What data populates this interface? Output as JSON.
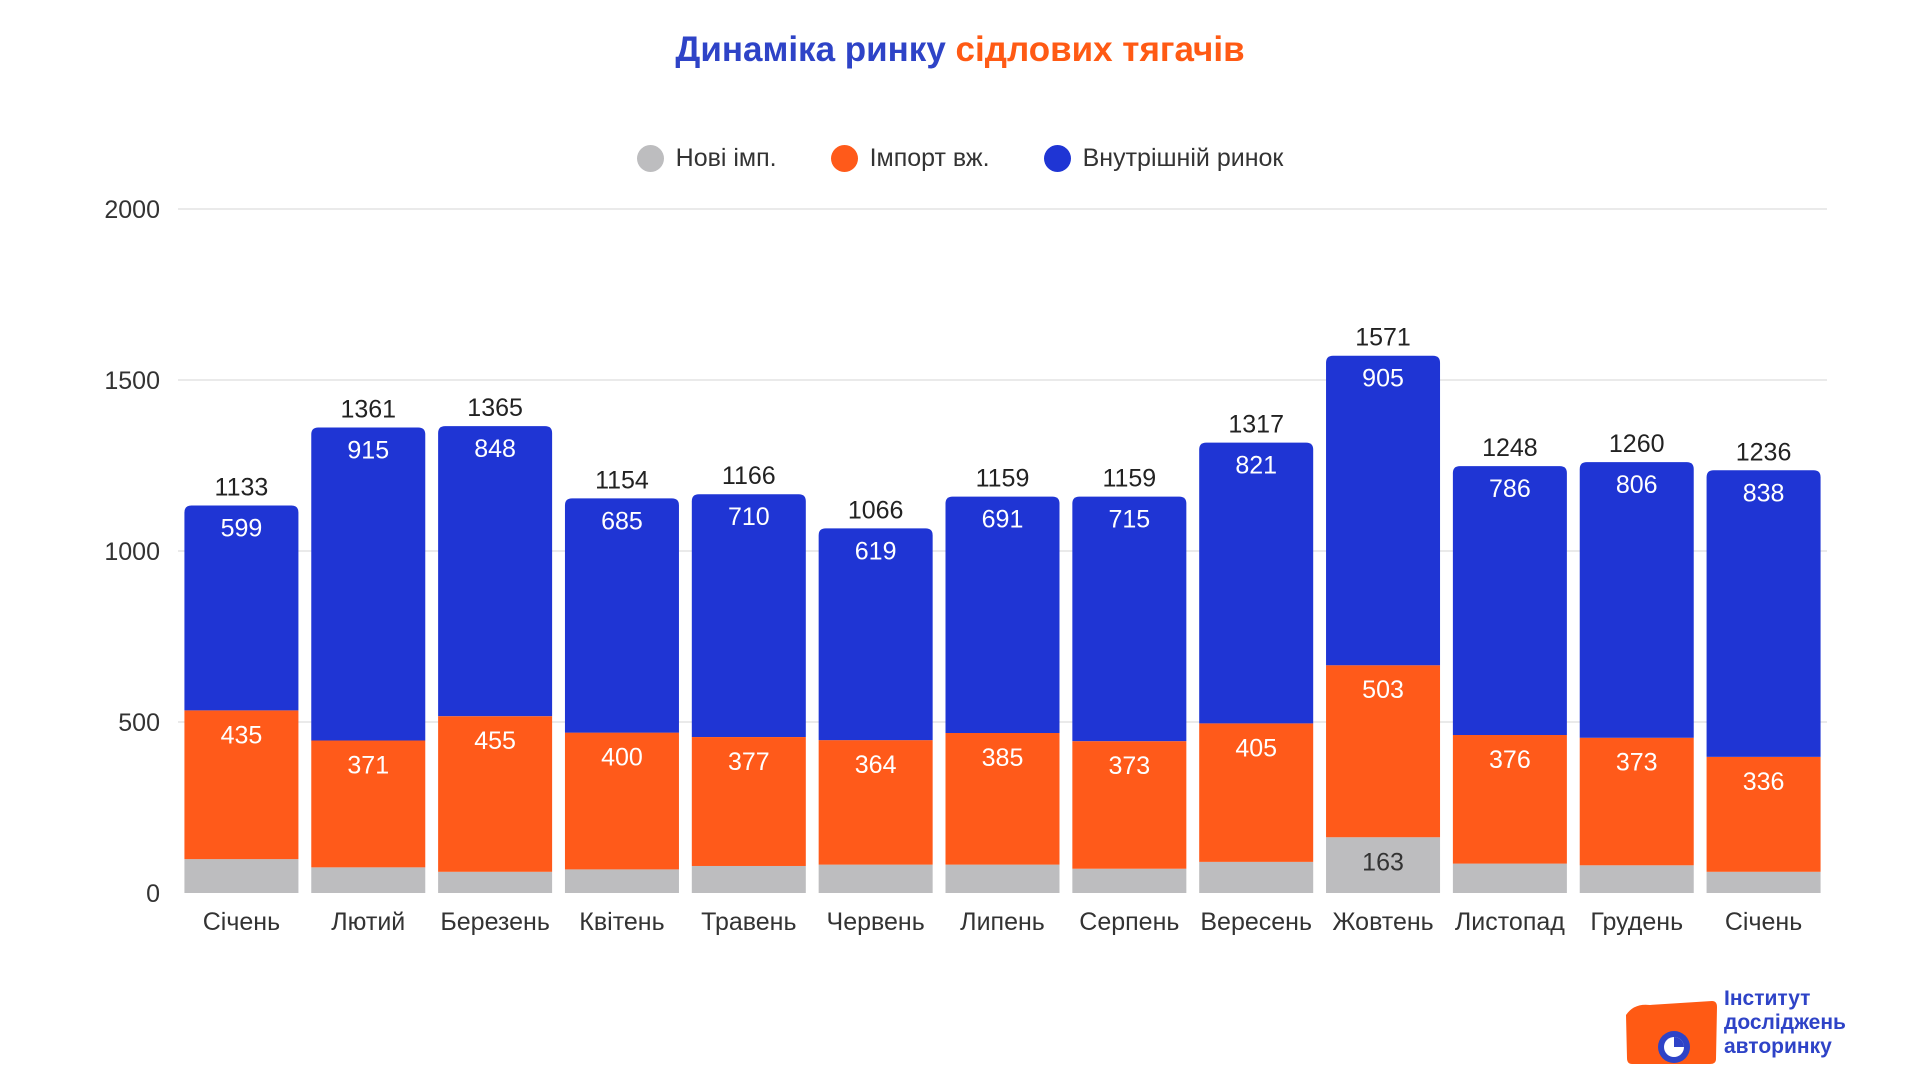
{
  "title": {
    "part1": "Динаміка ринку",
    "part2": "сідлових тягачів"
  },
  "legend": [
    {
      "label": "Нові імп.",
      "color": "#bdbdbf"
    },
    {
      "label": "Імпорт вж.",
      "color": "#ff5a1a"
    },
    {
      "label": "Внутрішній ринок",
      "color": "#1f35d4"
    }
  ],
  "chart_data": {
    "type": "bar",
    "stacked": true,
    "title": "Динаміка ринку сідлових тягачів",
    "xlabel": "",
    "ylabel": "",
    "ylim": [
      0,
      2000
    ],
    "yticks": [
      0,
      500,
      1000,
      1500,
      2000
    ],
    "grid": true,
    "legend_position": "top-center",
    "categories": [
      "Січень",
      "Лютий",
      "Березень",
      "Квітень",
      "Травень",
      "Червень",
      "Липень",
      "Серпень",
      "Вересень",
      "Жовтень",
      "Листопад",
      "Грудень",
      "Січень"
    ],
    "totals": [
      1133,
      1361,
      1365,
      1154,
      1166,
      1066,
      1159,
      1159,
      1317,
      1571,
      1248,
      1260,
      1236
    ],
    "series": [
      {
        "name": "Нові імп.",
        "color": "#bdbdbf",
        "values": [
          99,
          75,
          62,
          69,
          79,
          83,
          83,
          71,
          91,
          163,
          86,
          81,
          62
        ],
        "labels_shown": [
          false,
          false,
          false,
          false,
          false,
          false,
          false,
          false,
          false,
          true,
          false,
          false,
          false
        ]
      },
      {
        "name": "Імпорт вж.",
        "color": "#ff5a1a",
        "values": [
          435,
          371,
          455,
          400,
          377,
          364,
          385,
          373,
          405,
          503,
          376,
          373,
          336
        ]
      },
      {
        "name": "Внутрішній ринок",
        "color": "#1f35d4",
        "values": [
          599,
          915,
          848,
          685,
          710,
          619,
          691,
          715,
          821,
          905,
          786,
          806,
          838
        ]
      }
    ]
  },
  "logo": {
    "line1": "Інститут",
    "line2": "досліджень",
    "line3": "авторинку"
  }
}
